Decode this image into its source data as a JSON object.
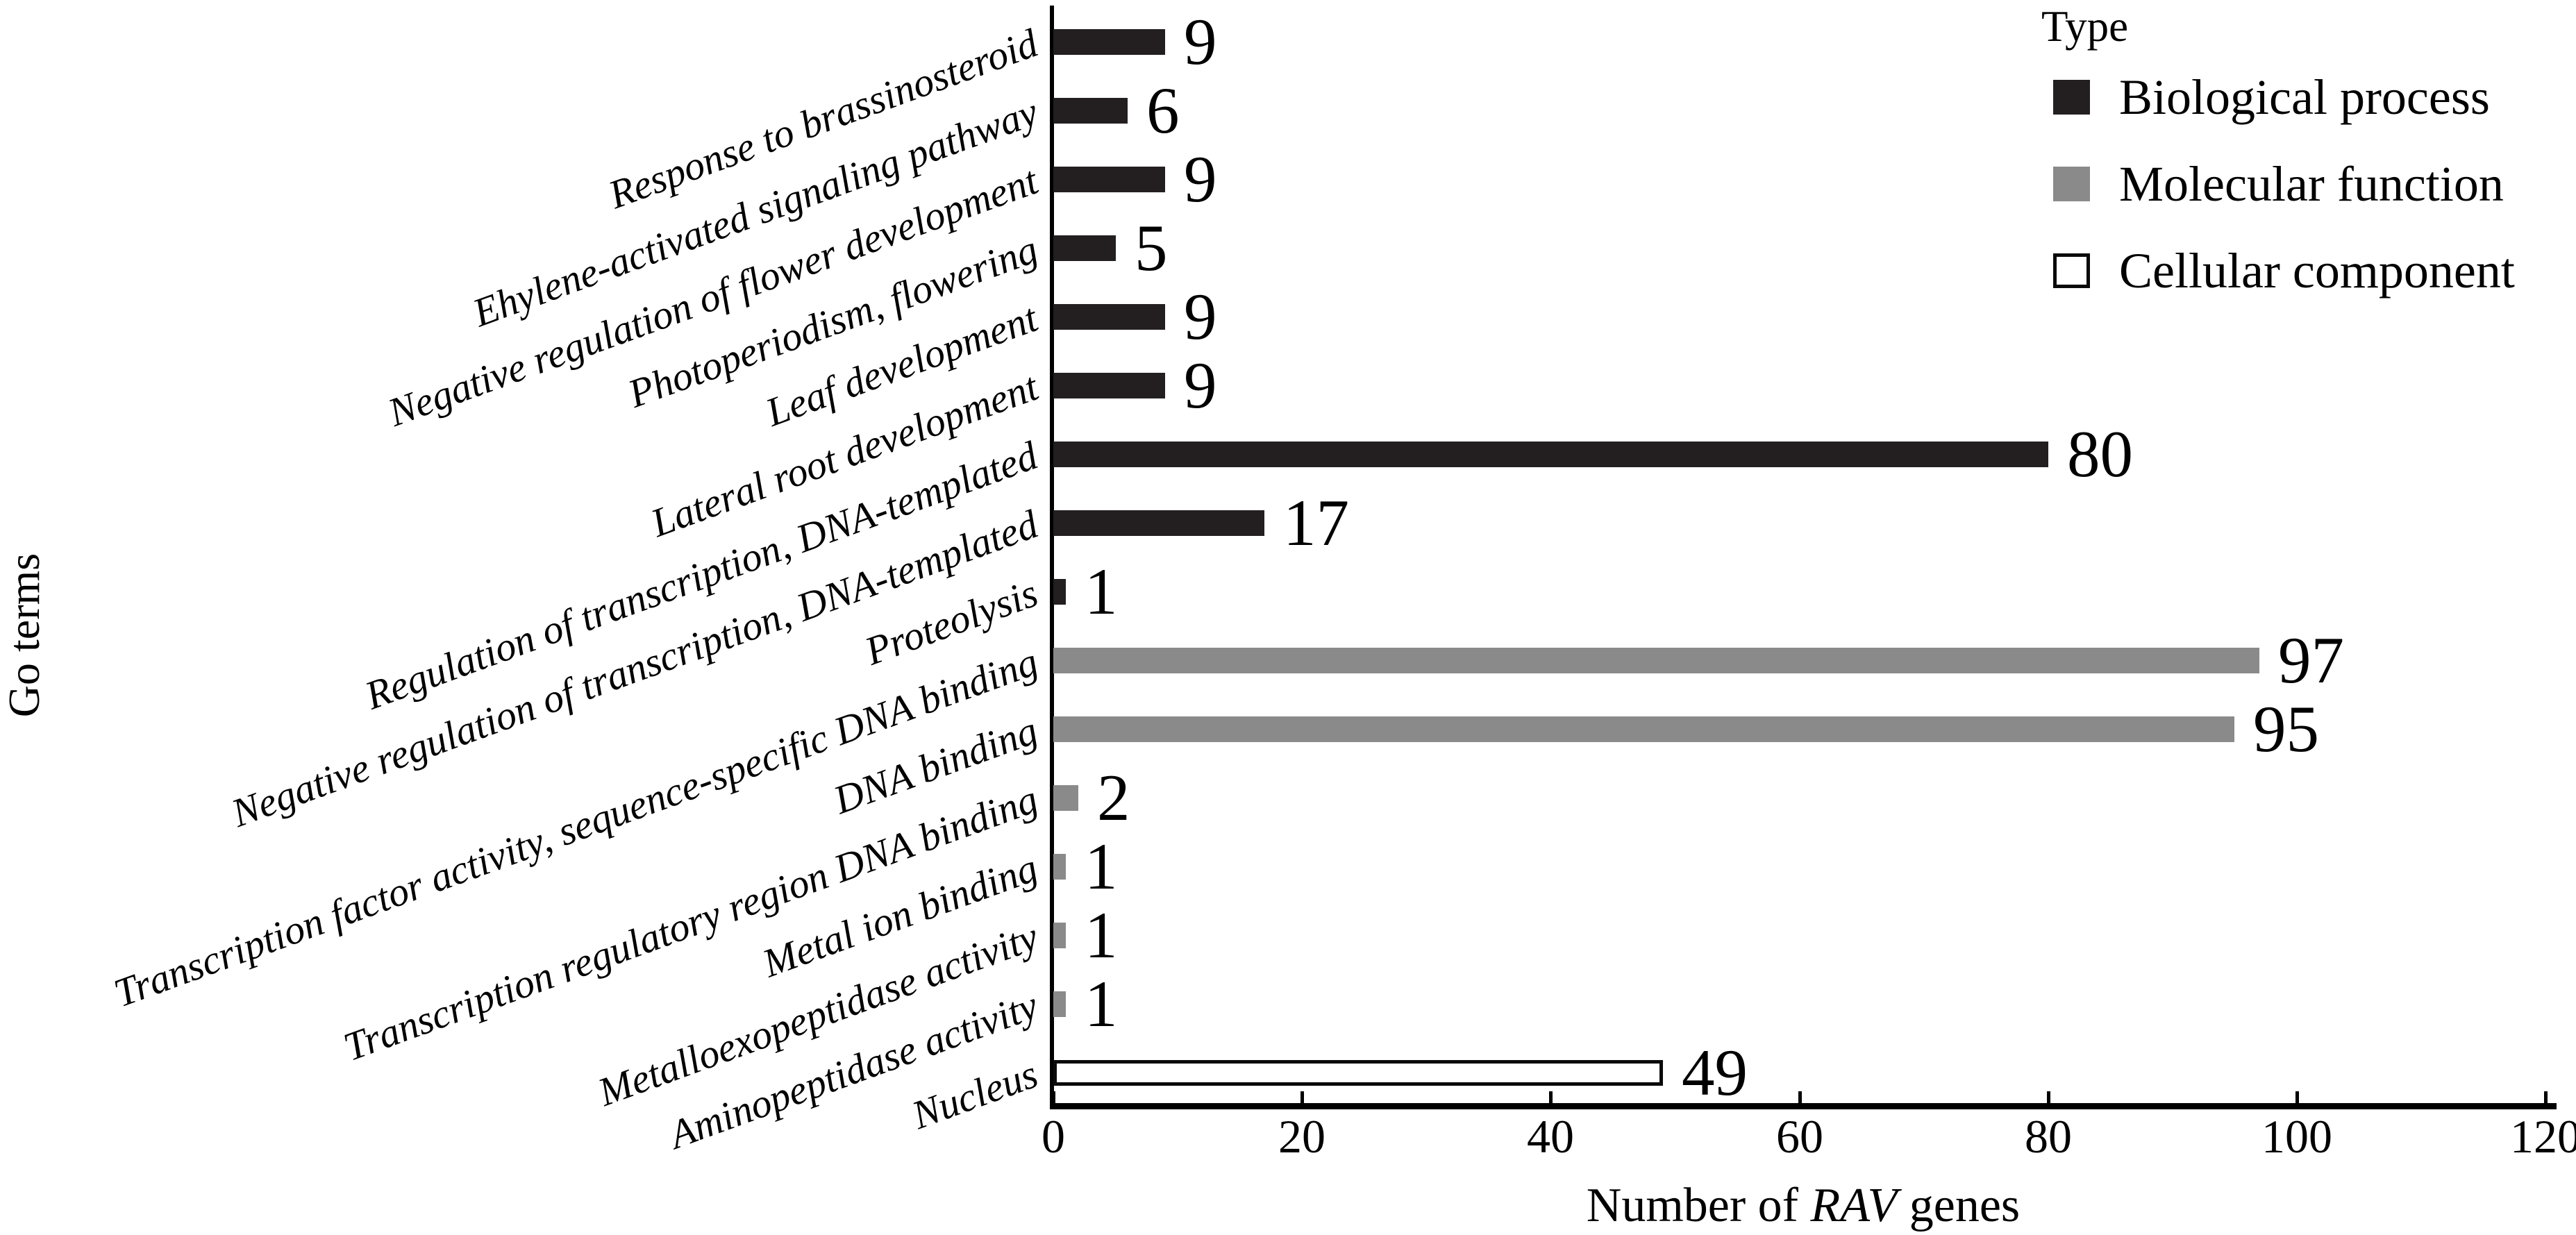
{
  "figure": {
    "y_axis_title": "Go terms",
    "x_axis_title_prefix": "Number of ",
    "x_axis_title_italic": "RAV",
    "x_axis_title_suffix": " genes"
  },
  "legend": {
    "title": "Type",
    "items": [
      {
        "label": "Biological process",
        "type": "biological",
        "color": "#231f20"
      },
      {
        "label": "Molecular function",
        "type": "molecular",
        "color": "#8a8a8a"
      },
      {
        "label": "Cellular component",
        "type": "cellular",
        "color": "#ffffff"
      }
    ]
  },
  "chart_data": {
    "type": "bar",
    "orientation": "horizontal",
    "title": "",
    "xlabel": "Number of RAV genes",
    "ylabel": "Go terms",
    "xlim": [
      0,
      120
    ],
    "x_ticks": [
      0,
      20,
      40,
      60,
      80,
      100,
      120
    ],
    "grid": false,
    "legend_position": "top-right",
    "value_labels_shown": true,
    "categories": [
      "Response to brassinosteroid",
      "Ehylene-activated signaling pathway",
      "Negative regulation of flower development",
      "Photoperiodism, flowering",
      "Leaf development",
      "Lateral root development",
      "Regulation of transcription, DNA-templated",
      "Negative regulation of transcription, DNA-templated",
      "Proteolysis",
      "Transcription factor activity, sequence-specific DNA binding",
      "DNA binding",
      "Transcription regulatory region DNA binding",
      "Metal ion binding",
      "Metalloexopeptidase activity",
      "Aminopeptidase activity",
      "Nucleus"
    ],
    "values": [
      9,
      6,
      9,
      5,
      9,
      9,
      80,
      17,
      1,
      97,
      95,
      2,
      1,
      1,
      1,
      49
    ],
    "types": [
      "biological",
      "biological",
      "biological",
      "biological",
      "biological",
      "biological",
      "biological",
      "biological",
      "biological",
      "molecular",
      "molecular",
      "molecular",
      "molecular",
      "molecular",
      "molecular",
      "cellular"
    ],
    "series": [
      {
        "name": "Biological process",
        "color": "#231f20",
        "categories": [
          "Response to brassinosteroid",
          "Ehylene-activated signaling pathway",
          "Negative regulation of flower development",
          "Photoperiodism, flowering",
          "Leaf development",
          "Lateral root development",
          "Regulation of transcription, DNA-templated",
          "Negative regulation of transcription, DNA-templated",
          "Proteolysis"
        ],
        "values": [
          9,
          6,
          9,
          5,
          9,
          9,
          80,
          17,
          1
        ]
      },
      {
        "name": "Molecular function",
        "color": "#8a8a8a",
        "categories": [
          "Transcription factor activity, sequence-specific DNA binding",
          "DNA binding",
          "Transcription regulatory region DNA binding",
          "Metal ion binding",
          "Metalloexopeptidase activity",
          "Aminopeptidase activity"
        ],
        "values": [
          97,
          95,
          2,
          1,
          1,
          1
        ]
      },
      {
        "name": "Cellular component",
        "color": "#ffffff",
        "categories": [
          "Nucleus"
        ],
        "values": [
          49
        ]
      }
    ]
  }
}
